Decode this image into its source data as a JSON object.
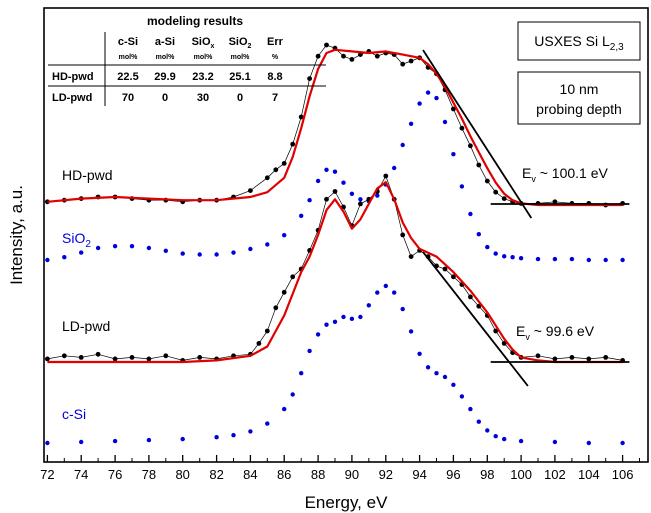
{
  "chart_data": {
    "type": "scatter",
    "title": "",
    "xlabel": "Energy, eV",
    "ylabel": "Intensity, a.u.",
    "xlim": [
      71.8,
      107.5
    ],
    "x_ticks": [
      72,
      74,
      76,
      78,
      80,
      82,
      84,
      86,
      88,
      90,
      92,
      94,
      96,
      98,
      100,
      102,
      104,
      106
    ],
    "y_ticks_shown": false,
    "grid": false,
    "note_box": {
      "title_main": "USXES Si L",
      "title_sub": "2,3",
      "depth_line1": "10 nm",
      "depth_line2": "probing depth"
    },
    "table": {
      "title": "modeling results",
      "columns": [
        {
          "name": "c-Si",
          "name_sub": "",
          "unit": "mol%"
        },
        {
          "name": "a-Si",
          "name_sub": "",
          "unit": "mol%"
        },
        {
          "name": "SiO",
          "name_sub": "x",
          "unit": "mol%"
        },
        {
          "name": "SiO",
          "name_sub": "2",
          "unit": "mol%"
        },
        {
          "name": "Err",
          "name_sub": "",
          "unit": "%"
        }
      ],
      "rows": [
        {
          "label": "HD-pwd",
          "values": [
            "22.5",
            "29.9",
            "23.2",
            "25.1",
            "8.8"
          ]
        },
        {
          "label": "LD-pwd",
          "values": [
            "70",
            "0",
            "30",
            "0",
            "7"
          ]
        }
      ]
    },
    "series": [
      {
        "name": "HD-pwd",
        "label": "HD-pwd",
        "label_color": "#000000",
        "color": "#000000",
        "baseline": 0,
        "x": [
          72,
          73,
          74,
          75,
          76,
          77,
          78,
          79,
          80,
          81,
          82,
          83,
          84,
          85,
          85.5,
          86,
          86.5,
          87,
          87.5,
          88,
          88.5,
          89,
          89.5,
          90,
          90.5,
          91,
          91.5,
          92,
          92.5,
          93,
          93.5,
          94,
          94.5,
          95,
          95.5,
          96,
          96.5,
          97,
          97.5,
          98,
          98.5,
          99,
          99.5,
          100,
          101,
          102,
          103,
          104,
          105,
          106
        ],
        "y": [
          0.02,
          0.03,
          0.04,
          0.05,
          0.05,
          0.04,
          0.03,
          0.03,
          0.02,
          0.03,
          0.03,
          0.05,
          0.09,
          0.17,
          0.22,
          0.26,
          0.38,
          0.55,
          0.79,
          0.93,
          1.0,
          0.98,
          0.93,
          0.91,
          0.94,
          0.96,
          0.93,
          0.95,
          0.94,
          0.88,
          0.9,
          0.92,
          0.86,
          0.82,
          0.72,
          0.6,
          0.48,
          0.37,
          0.25,
          0.15,
          0.08,
          0.04,
          0.02,
          0.01,
          0.01,
          0.02,
          0.01,
          0.01,
          0.0,
          0.01
        ]
      },
      {
        "name": "HD-pwd model",
        "color": "#e00000",
        "baseline": 0,
        "x": [
          72,
          74,
          76,
          78,
          80,
          82,
          84,
          85,
          86,
          86.5,
          87,
          87.5,
          88,
          88.5,
          89,
          90,
          91,
          92,
          93,
          94,
          94.5,
          95,
          95.5,
          96,
          96.5,
          97,
          97.5,
          98,
          98.5,
          99,
          99.5,
          100,
          101,
          102,
          104,
          106
        ],
        "y": [
          0.02,
          0.04,
          0.05,
          0.04,
          0.03,
          0.03,
          0.05,
          0.08,
          0.17,
          0.3,
          0.48,
          0.68,
          0.85,
          0.95,
          0.97,
          0.96,
          0.95,
          0.96,
          0.94,
          0.92,
          0.88,
          0.82,
          0.74,
          0.64,
          0.54,
          0.43,
          0.33,
          0.23,
          0.14,
          0.07,
          0.03,
          0.01,
          0.0,
          0.0,
          0.0,
          0.0
        ]
      },
      {
        "name": "SiO2",
        "label": "SiO",
        "label_sub": "2",
        "label_color": "#0000dd",
        "color": "#0000dd",
        "baseline": 0,
        "x": [
          72,
          73,
          74,
          75,
          76,
          77,
          78,
          79,
          80,
          81,
          82,
          83,
          84,
          85,
          86,
          87,
          87.5,
          88,
          88.5,
          89,
          89.5,
          90,
          90.5,
          91,
          91.5,
          92,
          92.5,
          93,
          93.5,
          94,
          94.5,
          95,
          95.5,
          96,
          96.5,
          97,
          97.5,
          98,
          98.5,
          99,
          99.5,
          100,
          101,
          102,
          103,
          104,
          105,
          106
        ],
        "y": [
          0.0,
          0.03,
          0.08,
          0.13,
          0.15,
          0.15,
          0.13,
          0.1,
          0.07,
          0.06,
          0.06,
          0.08,
          0.12,
          0.17,
          0.27,
          0.48,
          0.65,
          0.86,
          0.98,
          0.96,
          0.84,
          0.72,
          0.66,
          0.64,
          0.7,
          0.82,
          1.0,
          1.25,
          1.48,
          1.7,
          1.82,
          1.76,
          1.5,
          1.15,
          0.8,
          0.5,
          0.28,
          0.14,
          0.07,
          0.04,
          0.03,
          0.02,
          0.01,
          0.01,
          0.01,
          0.0,
          0.0,
          0.0
        ]
      },
      {
        "name": "LD-pwd",
        "label": "LD-pwd",
        "label_color": "#000000",
        "color": "#000000",
        "baseline": 0,
        "x": [
          72,
          73,
          74,
          75,
          76,
          77,
          78,
          79,
          80,
          81,
          82,
          83,
          84,
          84.5,
          85,
          85.5,
          86,
          86.5,
          87,
          87.5,
          88,
          88.5,
          89,
          89.5,
          90,
          90.5,
          91,
          91.5,
          92,
          92.5,
          93,
          93.5,
          94,
          94.5,
          95,
          95.5,
          96,
          96.5,
          97,
          97.5,
          98,
          98.5,
          99,
          99.5,
          100,
          101,
          102,
          103,
          104,
          105,
          106
        ],
        "y": [
          0.02,
          0.04,
          0.03,
          0.05,
          0.02,
          0.03,
          0.02,
          0.04,
          0.01,
          0.03,
          0.02,
          0.04,
          0.05,
          0.12,
          0.2,
          0.35,
          0.45,
          0.55,
          0.6,
          0.72,
          0.85,
          1.05,
          1.1,
          1.0,
          0.88,
          1.02,
          1.05,
          1.1,
          1.2,
          1.05,
          0.82,
          0.68,
          0.72,
          0.68,
          0.62,
          0.6,
          0.55,
          0.5,
          0.42,
          0.36,
          0.3,
          0.2,
          0.12,
          0.06,
          0.03,
          0.04,
          0.02,
          0.03,
          0.02,
          0.03,
          0.01
        ]
      },
      {
        "name": "LD-pwd model",
        "color": "#e00000",
        "baseline": 0,
        "x": [
          72,
          74,
          76,
          78,
          80,
          82,
          84,
          85,
          86,
          87,
          87.5,
          88,
          88.5,
          89,
          89.5,
          90,
          90.5,
          91,
          91.5,
          92,
          92.5,
          93,
          93.5,
          94,
          95,
          96,
          97,
          98,
          99,
          99.5,
          100,
          101,
          102,
          104,
          106
        ],
        "y": [
          0.0,
          0.0,
          0.0,
          0.0,
          0.0,
          0.01,
          0.04,
          0.1,
          0.3,
          0.58,
          0.68,
          0.82,
          0.98,
          1.05,
          0.97,
          0.86,
          0.92,
          1.02,
          1.12,
          1.16,
          1.05,
          0.9,
          0.8,
          0.73,
          0.68,
          0.58,
          0.46,
          0.32,
          0.15,
          0.08,
          0.03,
          0.01,
          0.0,
          0.0,
          0.0
        ]
      },
      {
        "name": "c-Si",
        "label": "c-Si",
        "label_color": "#0000dd",
        "color": "#0000dd",
        "baseline": 0,
        "x": [
          72,
          74,
          76,
          78,
          80,
          82,
          83,
          84,
          85,
          86,
          86.5,
          87,
          87.5,
          88,
          88.5,
          89,
          89.5,
          90,
          90.5,
          91,
          91.5,
          92,
          92.5,
          93,
          93.5,
          94,
          94.5,
          95,
          95.5,
          96,
          96.5,
          97,
          97.5,
          98,
          98.5,
          99,
          100,
          102,
          104,
          106
        ],
        "y": [
          0.0,
          0.01,
          0.02,
          0.03,
          0.04,
          0.06,
          0.08,
          0.12,
          0.2,
          0.35,
          0.5,
          0.72,
          0.95,
          1.12,
          1.22,
          1.25,
          1.3,
          1.28,
          1.3,
          1.42,
          1.55,
          1.62,
          1.55,
          1.38,
          1.15,
          0.92,
          0.78,
          0.72,
          0.68,
          0.6,
          0.48,
          0.35,
          0.22,
          0.13,
          0.07,
          0.04,
          0.02,
          0.01,
          0.0,
          0.0
        ]
      }
    ],
    "edges": [
      {
        "label": "E",
        "label_sub": "v",
        "label_rest": " ~ 100.1 eV",
        "edge_x": [
          94.2,
          100.6
        ],
        "line_x": [
          98.2,
          106.4
        ]
      },
      {
        "label": "E",
        "label_sub": "v",
        "label_rest": " ~ 99.6 eV",
        "edge_x": [
          94.2,
          100.4
        ],
        "line_x": [
          98.2,
          106.4
        ]
      }
    ]
  }
}
